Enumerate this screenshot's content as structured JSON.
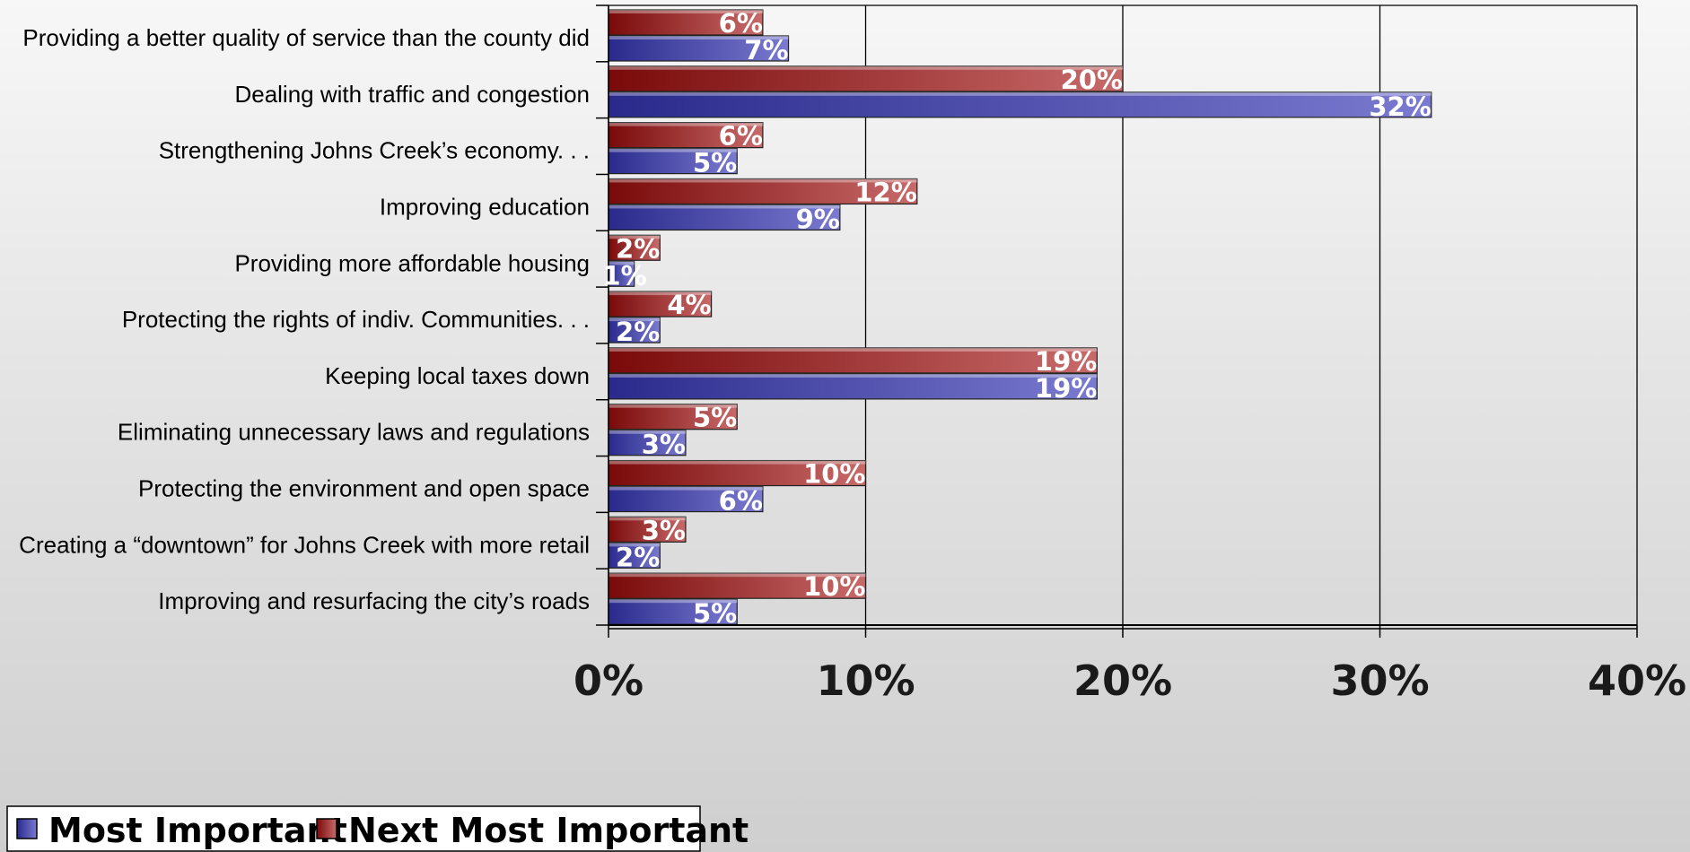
{
  "chart_data": {
    "type": "bar",
    "orientation": "horizontal",
    "categories": [
      "Providing a better quality of service than the county did",
      "Dealing with traffic and congestion",
      "Strengthening Johns Creek’s economy. . .",
      "Improving education",
      "Providing more affordable housing",
      "Protecting the rights of indiv. Communities. . .",
      "Keeping local taxes down",
      "Eliminating unnecessary laws and regulations",
      "Protecting the environment and open space",
      "Creating a “downtown” for Johns Creek with more retail",
      "Improving and resurfacing the city’s roads"
    ],
    "series": [
      {
        "name": "Most Important",
        "color": "#3a3a9e",
        "values": [
          7,
          32,
          5,
          9,
          1,
          2,
          19,
          3,
          6,
          2,
          5
        ],
        "labels": [
          "7%",
          "32%",
          "5%",
          "9%",
          "1%",
          "2%",
          "19%",
          "3%",
          "6%",
          "2%",
          "5%"
        ]
      },
      {
        "name": "Next Most Important",
        "color": "#8b1a1a",
        "values": [
          6,
          20,
          6,
          12,
          2,
          4,
          19,
          5,
          10,
          3,
          10
        ],
        "labels": [
          "6%",
          "20%",
          "6%",
          "12%",
          "2%",
          "4%",
          "19%",
          "5%",
          "10%",
          "3%",
          "10%"
        ]
      }
    ],
    "xlim": [
      0,
      40
    ],
    "x_ticks": [
      0,
      10,
      20,
      30,
      40
    ],
    "x_tick_labels": [
      "0%",
      "10%",
      "20%",
      "30%",
      "40%"
    ],
    "grid": true,
    "legend": {
      "position": "bottom-left",
      "entries": [
        "Most Important",
        "Next Most Important"
      ]
    }
  }
}
